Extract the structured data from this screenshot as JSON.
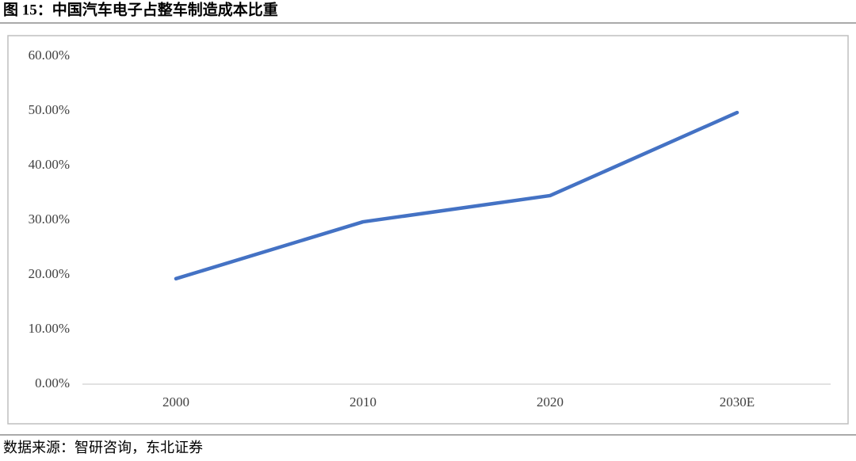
{
  "chart_data": {
    "type": "line",
    "title": "图 15：中国汽车电子占整车制造成本比重",
    "source": "数据来源：智研咨询，东北证券",
    "categories": [
      "2000",
      "2010",
      "2020",
      "2030E"
    ],
    "series": [
      {
        "name": "汽车电子占整车制造成本比重",
        "color": "#4472c4",
        "values": [
          19.3,
          29.7,
          34.5,
          49.7
        ]
      }
    ],
    "ylim": [
      0,
      60
    ],
    "yticks": [
      {
        "value": 0,
        "label": "0.00%"
      },
      {
        "value": 10,
        "label": "10.00%"
      },
      {
        "value": 20,
        "label": "20.00%"
      },
      {
        "value": 30,
        "label": "30.00%"
      },
      {
        "value": 40,
        "label": "40.00%"
      },
      {
        "value": 50,
        "label": "50.00%"
      },
      {
        "value": 60,
        "label": "60.00%"
      }
    ],
    "legend": false
  }
}
